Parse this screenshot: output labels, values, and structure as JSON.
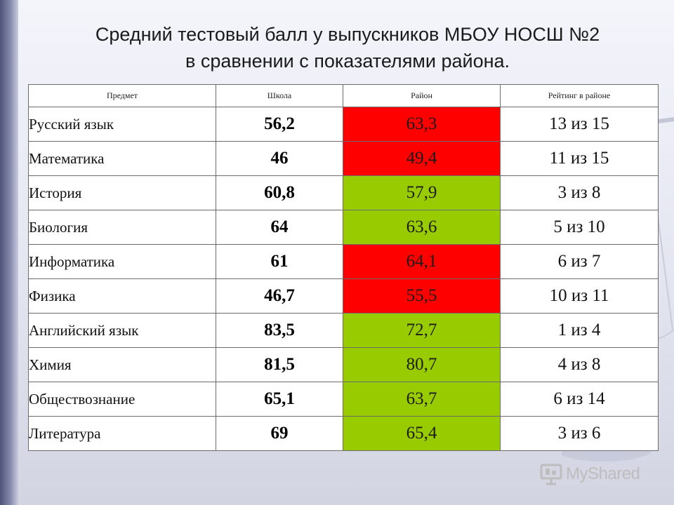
{
  "title": {
    "line1": "Средний тестовый балл у выпускников МБОУ НОСШ №2",
    "line2": "в сравнении с показателями района."
  },
  "table": {
    "headers": [
      "Предмет",
      "Школа",
      "Район",
      "Рейтинг в районе"
    ],
    "rows": [
      {
        "subject": "Русский язык",
        "school": "56,2",
        "district": "63,3",
        "rank": "13 из 15",
        "status": "red"
      },
      {
        "subject": "Математика",
        "school": "46",
        "district": "49,4",
        "rank": "11 из 15",
        "status": "red"
      },
      {
        "subject": "История",
        "school": "60,8",
        "district": "57,9",
        "rank": "3 из 8",
        "status": "green"
      },
      {
        "subject": "Биология",
        "school": "64",
        "district": "63,6",
        "rank": "5 из 10",
        "status": "green"
      },
      {
        "subject": "Информатика",
        "school": "61",
        "district": "64,1",
        "rank": "6 из 7",
        "status": "red"
      },
      {
        "subject": "Физика",
        "school": "46,7",
        "district": "55,5",
        "rank": "10 из 11",
        "status": "red"
      },
      {
        "subject": "Английский язык",
        "school": "83,5",
        "district": "72,7",
        "rank": "1 из 4",
        "status": "green"
      },
      {
        "subject": "Химия",
        "school": "81,5",
        "district": "80,7",
        "rank": "4 из 8",
        "status": "green"
      },
      {
        "subject": "Обществознание",
        "school": "65,1",
        "district": "63,7",
        "rank": "6 из 14",
        "status": "green"
      },
      {
        "subject": "Литература",
        "school": "69",
        "district": "65,4",
        "rank": "3 из 6",
        "status": "green"
      }
    ]
  },
  "colors": {
    "below_district": "#ff0000",
    "above_district": "#99cc00"
  },
  "watermark": {
    "text": "MyShared",
    "icon": "presentation-screen-icon"
  }
}
